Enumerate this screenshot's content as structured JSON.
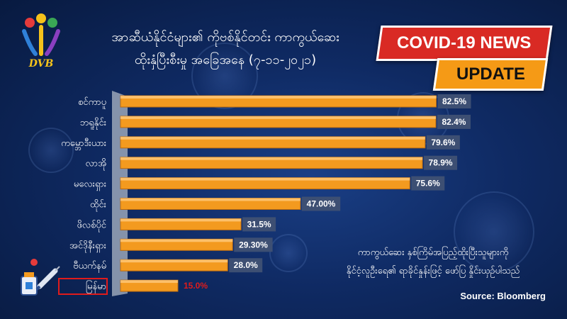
{
  "header": {
    "title_line1": "အာဆီယံနိုင်ငံများ၏ ကိုဗစ်နိုင်တင်း ကာကွယ်ဆေး",
    "title_line2": "ထိုးနှံပြီးစီးမှု အခြေအနေ (၇-၁၁-၂၀၂၁)",
    "logo_text": "DVB"
  },
  "badges": {
    "news": "COVID-19 NEWS",
    "update": "UPDATE"
  },
  "footnote": {
    "line1": "ကာကွယ်ဆေး နှစ်ကြိမ်အပြည့်ထိုးပြီးသူများကို",
    "line2": "နိုင်ငံ့လူဦးရေ၏ ရာခိုင်နှုန်းဖြင့် ဖော်ပြ နှိုင်းယှဉ်ပါသည်",
    "source": "Source: Bloomberg"
  },
  "colors": {
    "bar": "#f39a1f",
    "label_box": "#3d4f73",
    "highlight": "#e01b1b"
  },
  "chart_data": {
    "type": "bar",
    "orientation": "horizontal",
    "categories": [
      "စင်ကာပူ",
      "ဘရူနိုင်း",
      "ကမ္ဘောဒီးယား",
      "လာအို",
      "မလေးရှား",
      "ထိုင်း",
      "ဖိလစ်ပိုင်",
      "အင်ဒိုနီးရှား",
      "ဗီယက်နမ်",
      "မြန်မာ"
    ],
    "values": [
      82.5,
      82.4,
      79.6,
      78.9,
      75.6,
      47.0,
      31.5,
      29.3,
      28.0,
      15.0
    ],
    "value_labels": [
      "82.5%",
      "82.4%",
      "79.6%",
      "78.9%",
      "75.6%",
      "47.00%",
      "31.5%",
      "29.30%",
      "28.0%",
      "15.0%"
    ],
    "highlight_category": "မြန်မာ",
    "xlim": [
      0,
      100
    ],
    "title": "",
    "xlabel": "",
    "ylabel": ""
  }
}
